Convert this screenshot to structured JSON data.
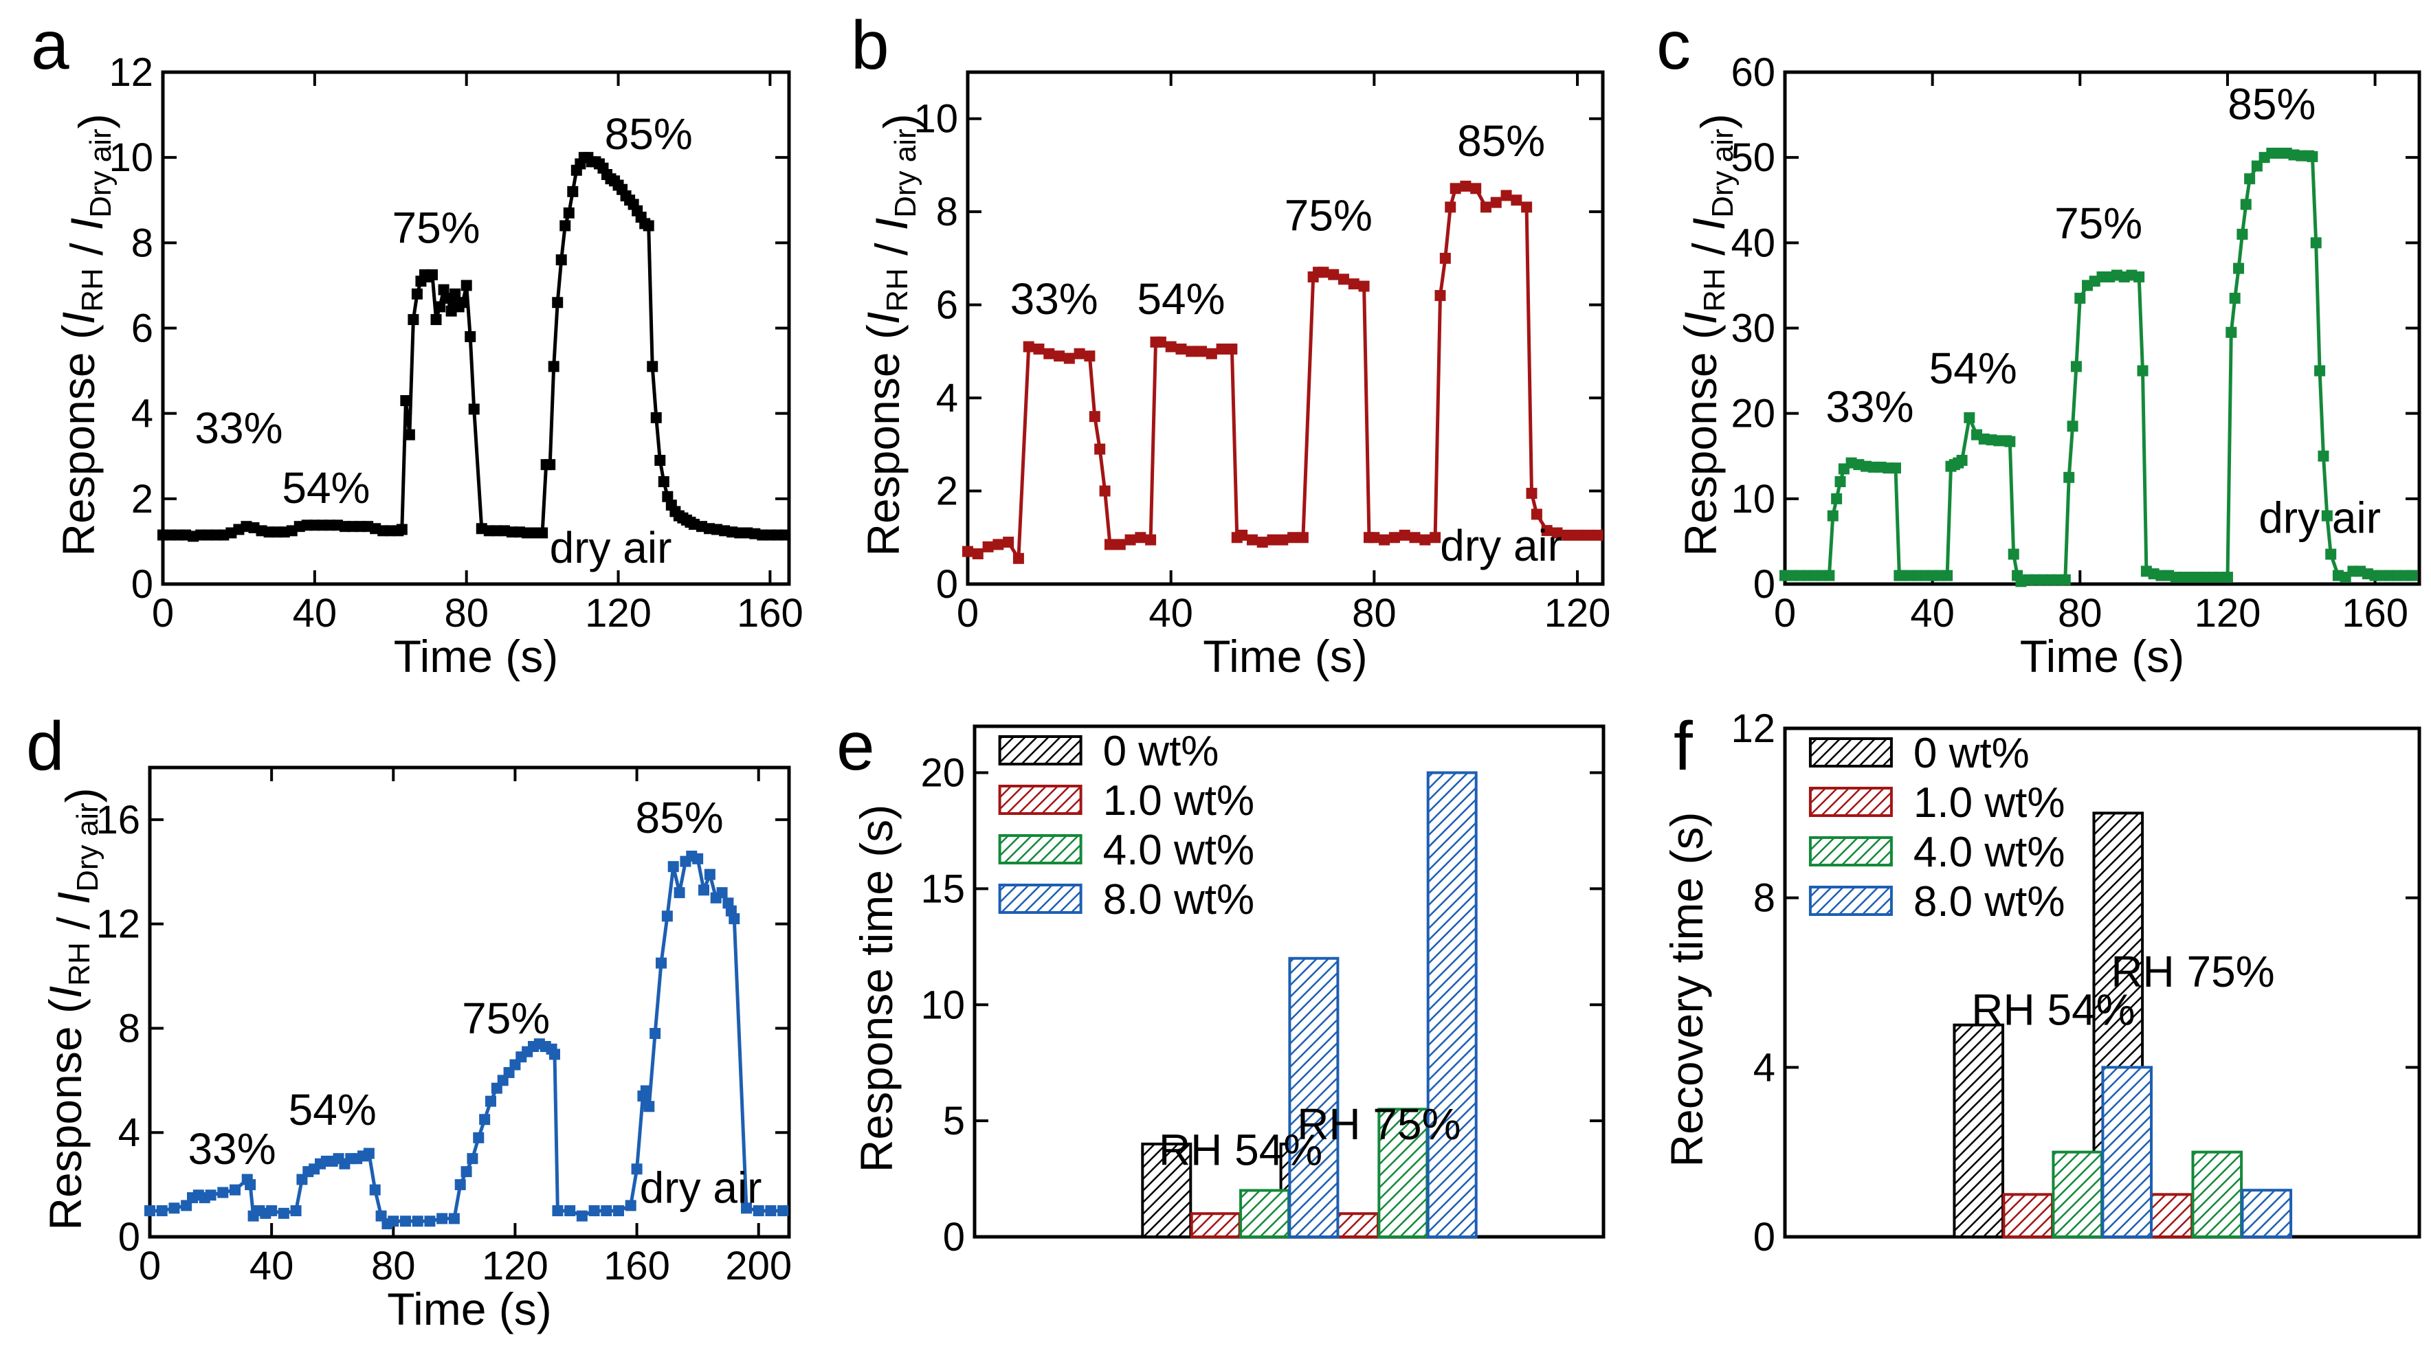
{
  "figure": {
    "panels": [
      "a",
      "b",
      "c",
      "d",
      "e",
      "f"
    ]
  },
  "colors": {
    "black": "#000000",
    "red": "#a31515",
    "green": "#14893a",
    "blue": "#1d5fb3"
  },
  "chart_data": [
    {
      "panel": "a",
      "type": "line",
      "color": "#000000",
      "xlabel": "Time (s)",
      "ylabel": {
        "prefix": "Response (",
        "i1": "I",
        "s1": "RH",
        "slash": " / ",
        "i2": "I",
        "s2": "Dry air",
        "suffix": ")"
      },
      "xlim": [
        0,
        165
      ],
      "ylim": [
        0,
        12
      ],
      "xticks": [
        0,
        40,
        80,
        120,
        160
      ],
      "yticks": [
        0,
        2,
        4,
        6,
        8,
        10,
        12
      ],
      "annotations": [
        {
          "text": "33%",
          "x": 20,
          "y": 3.3
        },
        {
          "text": "54%",
          "x": 43,
          "y": 1.9
        },
        {
          "text": "75%",
          "x": 72,
          "y": 8.0
        },
        {
          "text": "85%",
          "x": 128,
          "y": 10.2
        },
        {
          "text": "dry air",
          "x": 118,
          "y": 0.5
        }
      ],
      "x": [
        0,
        2,
        4,
        6,
        8,
        10,
        12,
        14,
        16,
        18,
        20,
        22,
        24,
        26,
        28,
        30,
        32,
        34,
        36,
        38,
        40,
        42,
        44,
        46,
        48,
        50,
        52,
        54,
        56,
        58,
        60,
        62,
        63,
        64,
        65,
        66,
        67,
        68,
        69,
        70,
        71,
        72,
        73,
        74,
        75,
        76,
        77,
        78,
        79,
        80,
        81,
        82,
        84,
        86,
        88,
        90,
        92,
        94,
        96,
        98,
        100,
        101,
        102,
        103,
        104,
        105,
        106,
        107,
        108,
        109,
        110,
        111,
        112,
        113,
        114,
        115,
        116,
        117,
        118,
        119,
        120,
        121,
        122,
        123,
        124,
        125,
        126,
        127,
        128,
        129,
        130,
        131,
        132,
        133,
        134,
        135,
        136,
        137,
        138,
        139,
        140,
        142,
        144,
        146,
        148,
        150,
        152,
        154,
        156,
        158,
        160,
        162,
        164
      ],
      "y": [
        1.15,
        1.15,
        1.15,
        1.15,
        1.12,
        1.15,
        1.15,
        1.15,
        1.15,
        1.2,
        1.28,
        1.35,
        1.32,
        1.25,
        1.22,
        1.22,
        1.22,
        1.25,
        1.35,
        1.38,
        1.38,
        1.38,
        1.38,
        1.38,
        1.35,
        1.35,
        1.35,
        1.35,
        1.3,
        1.25,
        1.25,
        1.25,
        1.28,
        4.3,
        3.5,
        6.2,
        6.8,
        7.1,
        7.25,
        7.2,
        7.25,
        6.2,
        6.5,
        6.9,
        6.7,
        6.4,
        6.8,
        6.5,
        6.6,
        7.0,
        5.8,
        4.1,
        1.3,
        1.25,
        1.25,
        1.25,
        1.22,
        1.22,
        1.2,
        1.2,
        1.2,
        2.8,
        2.8,
        5.1,
        6.6,
        7.6,
        8.4,
        8.7,
        9.2,
        9.7,
        9.85,
        10.0,
        10.0,
        9.9,
        9.9,
        9.85,
        9.75,
        9.6,
        9.5,
        9.45,
        9.35,
        9.25,
        9.1,
        9.0,
        8.9,
        8.75,
        8.6,
        8.45,
        8.4,
        5.1,
        3.9,
        2.9,
        2.4,
        2.05,
        1.85,
        1.7,
        1.6,
        1.55,
        1.5,
        1.45,
        1.4,
        1.35,
        1.3,
        1.28,
        1.25,
        1.22,
        1.2,
        1.2,
        1.18,
        1.15,
        1.15,
        1.15,
        1.15
      ]
    },
    {
      "panel": "b",
      "type": "line",
      "color": "#a31515",
      "xlabel": "Time (s)",
      "ylabel": {
        "prefix": "Response (",
        "i1": "I",
        "s1": "RH",
        "slash": " / ",
        "i2": "I",
        "s2": "Dry air",
        "suffix": ")"
      },
      "xlim": [
        0,
        125
      ],
      "ylim": [
        0,
        11
      ],
      "xticks": [
        0,
        40,
        80,
        120
      ],
      "yticks": [
        0,
        2,
        4,
        6,
        8,
        10
      ],
      "annotations": [
        {
          "text": "33%",
          "x": 17,
          "y": 5.8
        },
        {
          "text": "54%",
          "x": 42,
          "y": 5.8
        },
        {
          "text": "75%",
          "x": 71,
          "y": 7.6
        },
        {
          "text": "85%",
          "x": 105,
          "y": 9.2
        },
        {
          "text": "dry air",
          "x": 105,
          "y": 0.5
        }
      ],
      "x": [
        0,
        2,
        4,
        6,
        8,
        10,
        12,
        14,
        16,
        18,
        20,
        22,
        24,
        25,
        26,
        27,
        28,
        30,
        32,
        34,
        36,
        37,
        38,
        40,
        42,
        44,
        46,
        48,
        50,
        52,
        53,
        54,
        56,
        58,
        60,
        62,
        64,
        66,
        68,
        69,
        70,
        72,
        74,
        76,
        78,
        79,
        80,
        82,
        84,
        86,
        88,
        90,
        92,
        93,
        94,
        95,
        96,
        98,
        100,
        102,
        104,
        106,
        108,
        110,
        111,
        112,
        114,
        116,
        118,
        120,
        122,
        124
      ],
      "y": [
        0.7,
        0.65,
        0.8,
        0.85,
        0.9,
        0.55,
        5.1,
        5.05,
        4.95,
        4.9,
        4.85,
        4.95,
        4.9,
        3.6,
        2.9,
        2.0,
        0.85,
        0.85,
        0.95,
        1.0,
        0.95,
        5.2,
        5.2,
        5.1,
        5.05,
        5.0,
        5.0,
        4.95,
        5.05,
        5.05,
        1.0,
        1.05,
        0.95,
        0.9,
        0.95,
        0.95,
        1.0,
        1.0,
        6.6,
        6.7,
        6.7,
        6.65,
        6.55,
        6.45,
        6.4,
        1.0,
        1.0,
        0.95,
        1.0,
        1.05,
        1.0,
        0.95,
        1.0,
        6.2,
        7.0,
        8.1,
        8.5,
        8.55,
        8.5,
        8.1,
        8.2,
        8.35,
        8.25,
        8.1,
        1.95,
        1.5,
        1.15,
        1.1,
        1.05,
        1.05,
        1.05,
        1.05
      ]
    },
    {
      "panel": "c",
      "type": "line",
      "color": "#14893a",
      "xlabel": "Time (s)",
      "ylabel": {
        "prefix": "Response (",
        "i1": "I",
        "s1": "RH",
        "slash": " / ",
        "i2": "I",
        "s2": "Dry air",
        "suffix": ")"
      },
      "xlim": [
        0,
        172
      ],
      "ylim": [
        0,
        60
      ],
      "xticks": [
        0,
        40,
        80,
        120,
        160
      ],
      "yticks": [
        0,
        10,
        20,
        30,
        40,
        50,
        60
      ],
      "annotations": [
        {
          "text": "33%",
          "x": 23,
          "y": 19
        },
        {
          "text": "54%",
          "x": 51,
          "y": 23.5
        },
        {
          "text": "75%",
          "x": 85,
          "y": 40.5
        },
        {
          "text": "85%",
          "x": 132,
          "y": 54.5
        },
        {
          "text": "dry air",
          "x": 145,
          "y": 6
        }
      ],
      "x": [
        0,
        2,
        4,
        6,
        8,
        10,
        12,
        13,
        14,
        15,
        16,
        18,
        20,
        22,
        24,
        26,
        28,
        30,
        31,
        32,
        34,
        36,
        38,
        40,
        42,
        44,
        45,
        46,
        47,
        48,
        50,
        52,
        54,
        56,
        58,
        60,
        61,
        62,
        63,
        64,
        66,
        68,
        70,
        72,
        74,
        76,
        77,
        78,
        79,
        80,
        82,
        84,
        86,
        88,
        90,
        92,
        94,
        96,
        97,
        98,
        100,
        102,
        104,
        106,
        108,
        110,
        112,
        114,
        116,
        118,
        120,
        121,
        122,
        123,
        124,
        125,
        126,
        128,
        130,
        132,
        134,
        136,
        138,
        140,
        142,
        143,
        144,
        145,
        146,
        147,
        148,
        150,
        152,
        154,
        156,
        158,
        160,
        162,
        164,
        166,
        168,
        170
      ],
      "y": [
        1.0,
        1.0,
        1.0,
        1.0,
        1.0,
        1.0,
        1.0,
        8.0,
        10.0,
        12.0,
        13.5,
        14.2,
        14.0,
        13.8,
        13.7,
        13.7,
        13.6,
        13.6,
        1.0,
        1.0,
        1.0,
        1.0,
        1.0,
        1.0,
        1.0,
        1.0,
        13.8,
        14.0,
        14.2,
        14.5,
        19.5,
        17.5,
        17.0,
        16.9,
        16.8,
        16.8,
        16.7,
        3.5,
        1.0,
        0.3,
        0.5,
        0.5,
        0.5,
        0.5,
        0.5,
        0.5,
        12.5,
        18.5,
        25.5,
        33.5,
        35.0,
        35.5,
        36.0,
        36.0,
        36.2,
        36.0,
        36.2,
        36.0,
        25.0,
        1.5,
        1.2,
        1.0,
        1.0,
        0.8,
        0.8,
        0.8,
        0.8,
        0.8,
        0.8,
        0.8,
        0.8,
        29.5,
        33.5,
        37.0,
        41.0,
        44.5,
        47.5,
        49.0,
        50.0,
        50.5,
        50.5,
        50.5,
        50.3,
        50.2,
        50.2,
        50.1,
        40.0,
        25.0,
        15.0,
        8.0,
        3.5,
        1.0,
        0.8,
        1.5,
        1.5,
        1.2,
        1.0,
        1.0,
        1.0,
        1.0,
        1.0,
        1.0
      ]
    },
    {
      "panel": "d",
      "type": "line",
      "color": "#1d5fb3",
      "xlabel": "Time (s)",
      "ylabel": {
        "prefix": "Response (",
        "i1": "I",
        "s1": "RH",
        "slash": " / ",
        "i2": "I",
        "s2": "Dry air",
        "suffix": ")"
      },
      "xlim": [
        0,
        210
      ],
      "ylim": [
        0,
        18
      ],
      "xticks": [
        0,
        40,
        80,
        120,
        160,
        200
      ],
      "yticks": [
        0,
        4,
        8,
        12,
        16
      ],
      "annotations": [
        {
          "text": "33%",
          "x": 27,
          "y": 2.8
        },
        {
          "text": "54%",
          "x": 60,
          "y": 4.3
        },
        {
          "text": "75%",
          "x": 117,
          "y": 7.8
        },
        {
          "text": "85%",
          "x": 174,
          "y": 15.5
        },
        {
          "text": "dry air",
          "x": 181,
          "y": 1.3
        }
      ],
      "x": [
        0,
        4,
        8,
        12,
        14,
        16,
        18,
        20,
        24,
        28,
        32,
        33,
        34,
        36,
        38,
        40,
        44,
        48,
        50,
        52,
        54,
        56,
        58,
        60,
        62,
        64,
        66,
        68,
        70,
        72,
        74,
        76,
        78,
        80,
        84,
        88,
        92,
        96,
        100,
        102,
        104,
        106,
        108,
        110,
        112,
        114,
        116,
        118,
        120,
        122,
        124,
        126,
        128,
        130,
        132,
        133,
        134,
        138,
        142,
        146,
        150,
        154,
        158,
        160,
        162,
        163,
        164,
        166,
        168,
        170,
        172,
        174,
        176,
        178,
        180,
        182,
        184,
        186,
        188,
        190,
        191,
        192,
        196,
        200,
        204,
        208
      ],
      "y": [
        1.0,
        1.0,
        1.1,
        1.2,
        1.5,
        1.6,
        1.5,
        1.6,
        1.7,
        1.8,
        2.2,
        2.0,
        0.8,
        1.0,
        0.9,
        1.0,
        0.9,
        1.0,
        2.2,
        2.5,
        2.6,
        2.8,
        2.9,
        2.9,
        3.0,
        2.8,
        3.0,
        3.0,
        3.1,
        3.2,
        1.8,
        0.8,
        0.5,
        0.6,
        0.6,
        0.6,
        0.6,
        0.7,
        0.7,
        2.0,
        2.5,
        3.0,
        3.8,
        4.5,
        5.2,
        5.7,
        6.0,
        6.3,
        6.6,
        6.9,
        7.1,
        7.3,
        7.4,
        7.3,
        7.2,
        7.0,
        1.0,
        1.0,
        0.8,
        1.0,
        1.0,
        1.0,
        1.2,
        2.6,
        5.4,
        5.6,
        5.0,
        7.8,
        10.5,
        12.3,
        14.2,
        13.2,
        14.4,
        14.6,
        14.5,
        13.3,
        13.9,
        13.0,
        13.2,
        12.8,
        12.5,
        12.2,
        1.1,
        1.0,
        1.0,
        1.0
      ]
    },
    {
      "panel": "e",
      "type": "bar",
      "ylabel": "Response time (s)",
      "ylim": [
        0,
        22
      ],
      "yticks": [
        0,
        5,
        10,
        15,
        20
      ],
      "categories": [
        "RH 54%",
        "RH 75%"
      ],
      "series": [
        {
          "name": "0 wt%",
          "color": "#000000",
          "values": [
            4.0,
            4.0
          ]
        },
        {
          "name": "1.0 wt%",
          "color": "#a31515",
          "values": [
            1.0,
            1.0
          ]
        },
        {
          "name": "4.0 wt%",
          "color": "#14893a",
          "values": [
            2.0,
            5.5
          ]
        },
        {
          "name": "8.0 wt%",
          "color": "#1d5fb3",
          "values": [
            12.0,
            20.0
          ]
        }
      ],
      "annotations": [
        {
          "text": "RH 54%",
          "group": 0,
          "y": 3.1
        },
        {
          "text": "RH 75%",
          "group": 1,
          "y": 4.2
        }
      ]
    },
    {
      "panel": "f",
      "type": "bar",
      "ylabel": "Recovery time (s)",
      "ylim": [
        0,
        12
      ],
      "yticks": [
        0,
        4,
        8,
        12
      ],
      "categories": [
        "RH 54%",
        "RH 75%"
      ],
      "series": [
        {
          "name": "0 wt%",
          "color": "#000000",
          "values": [
            5.0,
            10.0
          ]
        },
        {
          "name": "1.0 wt%",
          "color": "#a31515",
          "values": [
            1.0,
            1.0
          ]
        },
        {
          "name": "4.0 wt%",
          "color": "#14893a",
          "values": [
            2.0,
            2.0
          ]
        },
        {
          "name": "8.0 wt%",
          "color": "#1d5fb3",
          "values": [
            4.0,
            1.1
          ]
        }
      ],
      "annotations": [
        {
          "text": "RH 54%",
          "group": 0,
          "y": 5.0
        },
        {
          "text": "RH 75%",
          "group": 1,
          "y": 5.9
        }
      ]
    }
  ]
}
